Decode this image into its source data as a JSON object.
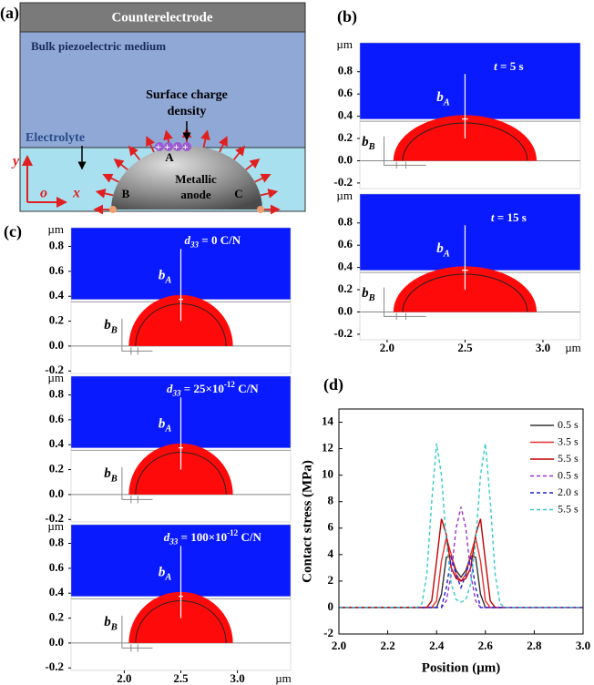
{
  "panel_labels": [
    "(a)",
    "(b)",
    "(c)",
    "(d)"
  ],
  "schematic": {
    "top_layer": "Counterelectrode",
    "middle_layer": "Bulk piezoelectric medium",
    "electrolyte": "Electrolyte",
    "charge_label": [
      "Surface charge",
      "density"
    ],
    "charges": "++++",
    "point_a": "A",
    "point_b": "B",
    "point_c": "C",
    "anode": [
      "Metallic",
      "anode"
    ],
    "axis_y": "y",
    "origin": "o",
    "axis_x": "x"
  },
  "sim_groups": [
    {
      "xlim": [
        1.825,
        3.24
      ],
      "ylim": [
        -0.25,
        1.06
      ],
      "yticks": [
        -0.2,
        {
          "value": 0,
          "label": "0.0"
        },
        0.2,
        0.4,
        0.6,
        0.8
      ],
      "xticks": [
        {
          "value": 2,
          "label": "2.0"
        },
        2.5,
        {
          "value": 3,
          "label": "3.0"
        }
      ],
      "unit": "µm",
      "label_a": [
        {
          "text": "b",
          "style": "italic"
        },
        {
          "text": "A",
          "style": "sub"
        }
      ],
      "label_b": [
        {
          "text": "b",
          "style": "italic"
        },
        {
          "text": "B",
          "style": "sub"
        }
      ],
      "panels": [
        {
          "annotation": [
            {
              "text": "t",
              "style": "italic"
            },
            {
              "text": " = 5 s",
              "style": "normal"
            }
          ]
        },
        {
          "annotation": [
            {
              "text": "t",
              "style": "italic"
            },
            {
              "text": " = 15 s",
              "style": "normal"
            }
          ]
        }
      ]
    },
    {
      "xlim": [
        1.53,
        3.47
      ],
      "ylim": [
        -0.22,
        0.95
      ],
      "yticks": [
        -0.2,
        {
          "value": 0,
          "label": "0.0"
        },
        0.2,
        0.4,
        0.6,
        0.8
      ],
      "xticks": [
        {
          "value": 2,
          "label": "2.0"
        },
        2.5,
        {
          "value": 3,
          "label": "3.0"
        }
      ],
      "unit": "µm",
      "label_a": [
        {
          "text": "b",
          "style": "italic"
        },
        {
          "text": "A",
          "style": "sub"
        }
      ],
      "label_b": [
        {
          "text": "b",
          "style": "italic"
        },
        {
          "text": "B",
          "style": "sub"
        }
      ],
      "panels": [
        {
          "annotation": [
            {
              "text": "d",
              "style": "italic"
            },
            {
              "text": "33",
              "style": "sub"
            },
            {
              "text": " = 0 C/N",
              "style": "normal"
            }
          ]
        },
        {
          "annotation": [
            {
              "text": "d",
              "style": "italic"
            },
            {
              "text": "33",
              "style": "sub"
            },
            {
              "text": " = 25×10",
              "style": "normal"
            },
            {
              "text": "-12",
              "style": "sup"
            },
            {
              "text": " C/N",
              "style": "normal"
            }
          ]
        },
        {
          "annotation": [
            {
              "text": "d",
              "style": "italic"
            },
            {
              "text": "33",
              "style": "sub"
            },
            {
              "text": " = 100×10",
              "style": "normal"
            },
            {
              "text": "-12",
              "style": "sup"
            },
            {
              "text": " C/N",
              "style": "normal"
            }
          ]
        }
      ]
    }
  ],
  "chart_data": {
    "type": "line",
    "x_label": "Position (μm)",
    "y_label": "Contact stress (MPa)",
    "x": [
      2.0,
      2.3,
      2.32,
      2.34,
      2.36,
      2.38,
      2.4,
      2.42,
      2.44,
      2.46,
      2.48,
      2.5,
      2.52,
      2.54,
      2.56,
      2.58,
      2.6,
      2.62,
      2.64,
      2.66,
      2.68,
      2.7,
      3.0
    ],
    "series": [
      {
        "name": "0.5 s",
        "color": "#333333",
        "line_style": "solid",
        "values": [
          0,
          0,
          0,
          0,
          0,
          0,
          0,
          1,
          3.8,
          3.9,
          2.8,
          2.3,
          2.8,
          3.9,
          3.8,
          1,
          0,
          0,
          0,
          0,
          0,
          0,
          0
        ]
      },
      {
        "name": "3.5 s",
        "color": "#e83030",
        "line_style": "solid",
        "values": [
          0,
          0,
          0,
          0,
          0,
          0,
          0.5,
          3.5,
          5.3,
          4,
          2.5,
          2,
          2.5,
          4,
          5.3,
          3.5,
          0.5,
          0,
          0,
          0,
          0,
          0,
          0
        ]
      },
      {
        "name": "5.5 s",
        "color": "#c00000",
        "line_style": "solid",
        "values": [
          0,
          0,
          0,
          0,
          0,
          0.5,
          3.5,
          6.7,
          5.5,
          3,
          2.2,
          2,
          2.2,
          3,
          5.5,
          6.7,
          3.5,
          0.5,
          0,
          0,
          0,
          0,
          0
        ]
      },
      {
        "name": "0.5 s",
        "color": "#9933cc",
        "line_style": "dashed",
        "values": [
          0,
          0,
          0,
          0,
          0,
          0,
          0,
          0,
          0.5,
          2.5,
          6,
          7.6,
          6,
          2.5,
          0.5,
          0,
          0,
          0,
          0,
          0,
          0,
          0,
          0
        ]
      },
      {
        "name": "2.0 s",
        "color": "#2222cc",
        "line_style": "dashed",
        "values": [
          0,
          0,
          0,
          0,
          0,
          0,
          0,
          0,
          1.5,
          3.8,
          2.5,
          1.5,
          2.5,
          3.8,
          1.5,
          0,
          0,
          0,
          0,
          0,
          0,
          0,
          0
        ]
      },
      {
        "name": "5.5 s",
        "color": "#33cccc",
        "line_style": "dashed",
        "values": [
          0,
          0,
          0,
          0.3,
          2.5,
          8,
          12.4,
          10,
          5,
          1.8,
          0.6,
          0.4,
          0.6,
          1.8,
          5,
          10,
          12.4,
          8,
          2.5,
          0.3,
          0,
          0,
          0
        ]
      }
    ],
    "xlim": [
      2.0,
      3.0
    ],
    "ylim": [
      -2,
      15
    ],
    "xticks": [
      {
        "value": 2,
        "label": "2.0"
      },
      2.2,
      2.4,
      2.6,
      2.8,
      {
        "value": 3,
        "label": "3.0"
      }
    ],
    "yticks": [
      -2,
      0,
      2,
      4,
      6,
      8,
      10,
      12,
      14
    ],
    "legend": "upper right",
    "grid": false
  }
}
